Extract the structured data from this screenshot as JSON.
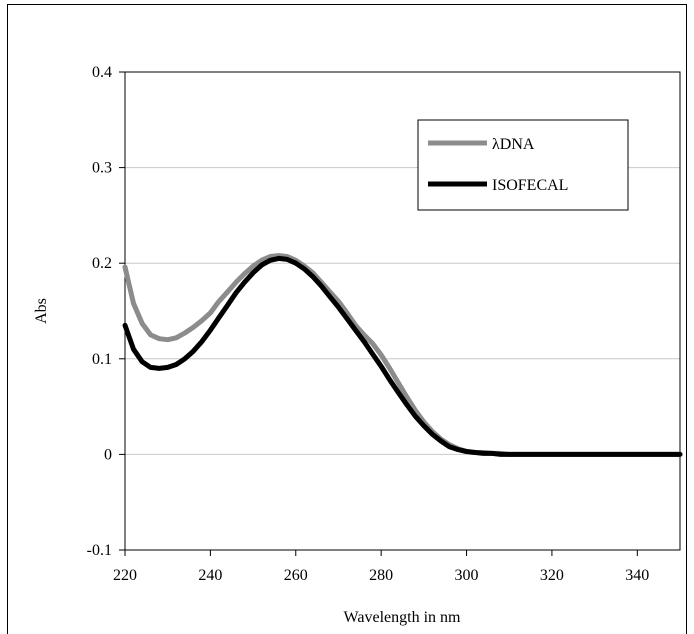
{
  "chart_data": {
    "type": "line",
    "title": "",
    "xlabel": "Wavelength in nm",
    "ylabel": "Abs",
    "xlim": [
      220,
      350
    ],
    "ylim": [
      -0.1,
      0.4
    ],
    "x_ticks": [
      "220",
      "240",
      "260",
      "280",
      "300",
      "320",
      "340"
    ],
    "y_ticks": [
      "-0.1",
      "0",
      "0.1",
      "0.2",
      "0.3",
      "0.4"
    ],
    "grid": "horizontal",
    "legend_position": "top-right",
    "series": [
      {
        "name": "λDNA",
        "color": "#8c8c8c",
        "x": [
          220,
          222,
          224,
          226,
          228,
          230,
          232,
          234,
          236,
          238,
          240,
          242,
          244,
          246,
          248,
          250,
          252,
          254,
          256,
          258,
          260,
          262,
          264,
          266,
          268,
          270,
          272,
          274,
          276,
          278,
          280,
          282,
          284,
          286,
          288,
          290,
          292,
          294,
          296,
          298,
          300,
          302,
          304,
          306,
          308,
          310,
          320,
          330,
          340,
          350
        ],
        "y": [
          0.196,
          0.158,
          0.137,
          0.125,
          0.121,
          0.12,
          0.122,
          0.127,
          0.133,
          0.14,
          0.148,
          0.16,
          0.17,
          0.18,
          0.189,
          0.197,
          0.203,
          0.207,
          0.208,
          0.207,
          0.203,
          0.197,
          0.19,
          0.18,
          0.17,
          0.16,
          0.148,
          0.135,
          0.125,
          0.116,
          0.104,
          0.09,
          0.075,
          0.06,
          0.046,
          0.034,
          0.024,
          0.016,
          0.01,
          0.006,
          0.003,
          0.002,
          0.002,
          0.001,
          0.001,
          0.0,
          0.0,
          0.0,
          0.0,
          0.0
        ]
      },
      {
        "name": "ISOFECAL",
        "color": "#000000",
        "x": [
          220,
          222,
          224,
          226,
          228,
          230,
          232,
          234,
          236,
          238,
          240,
          242,
          244,
          246,
          248,
          250,
          252,
          254,
          256,
          258,
          260,
          262,
          264,
          266,
          268,
          270,
          272,
          274,
          276,
          278,
          280,
          282,
          284,
          286,
          288,
          290,
          292,
          294,
          296,
          298,
          300,
          302,
          304,
          306,
          308,
          310,
          320,
          330,
          340,
          350
        ],
        "y": [
          0.135,
          0.11,
          0.097,
          0.091,
          0.09,
          0.091,
          0.094,
          0.1,
          0.108,
          0.118,
          0.13,
          0.143,
          0.156,
          0.169,
          0.18,
          0.19,
          0.198,
          0.203,
          0.205,
          0.204,
          0.2,
          0.194,
          0.186,
          0.176,
          0.165,
          0.154,
          0.142,
          0.13,
          0.118,
          0.105,
          0.092,
          0.078,
          0.065,
          0.052,
          0.04,
          0.03,
          0.021,
          0.014,
          0.008,
          0.005,
          0.003,
          0.002,
          0.001,
          0.001,
          0.0,
          0.0,
          0.0,
          0.0,
          0.0,
          0.0
        ]
      }
    ]
  }
}
